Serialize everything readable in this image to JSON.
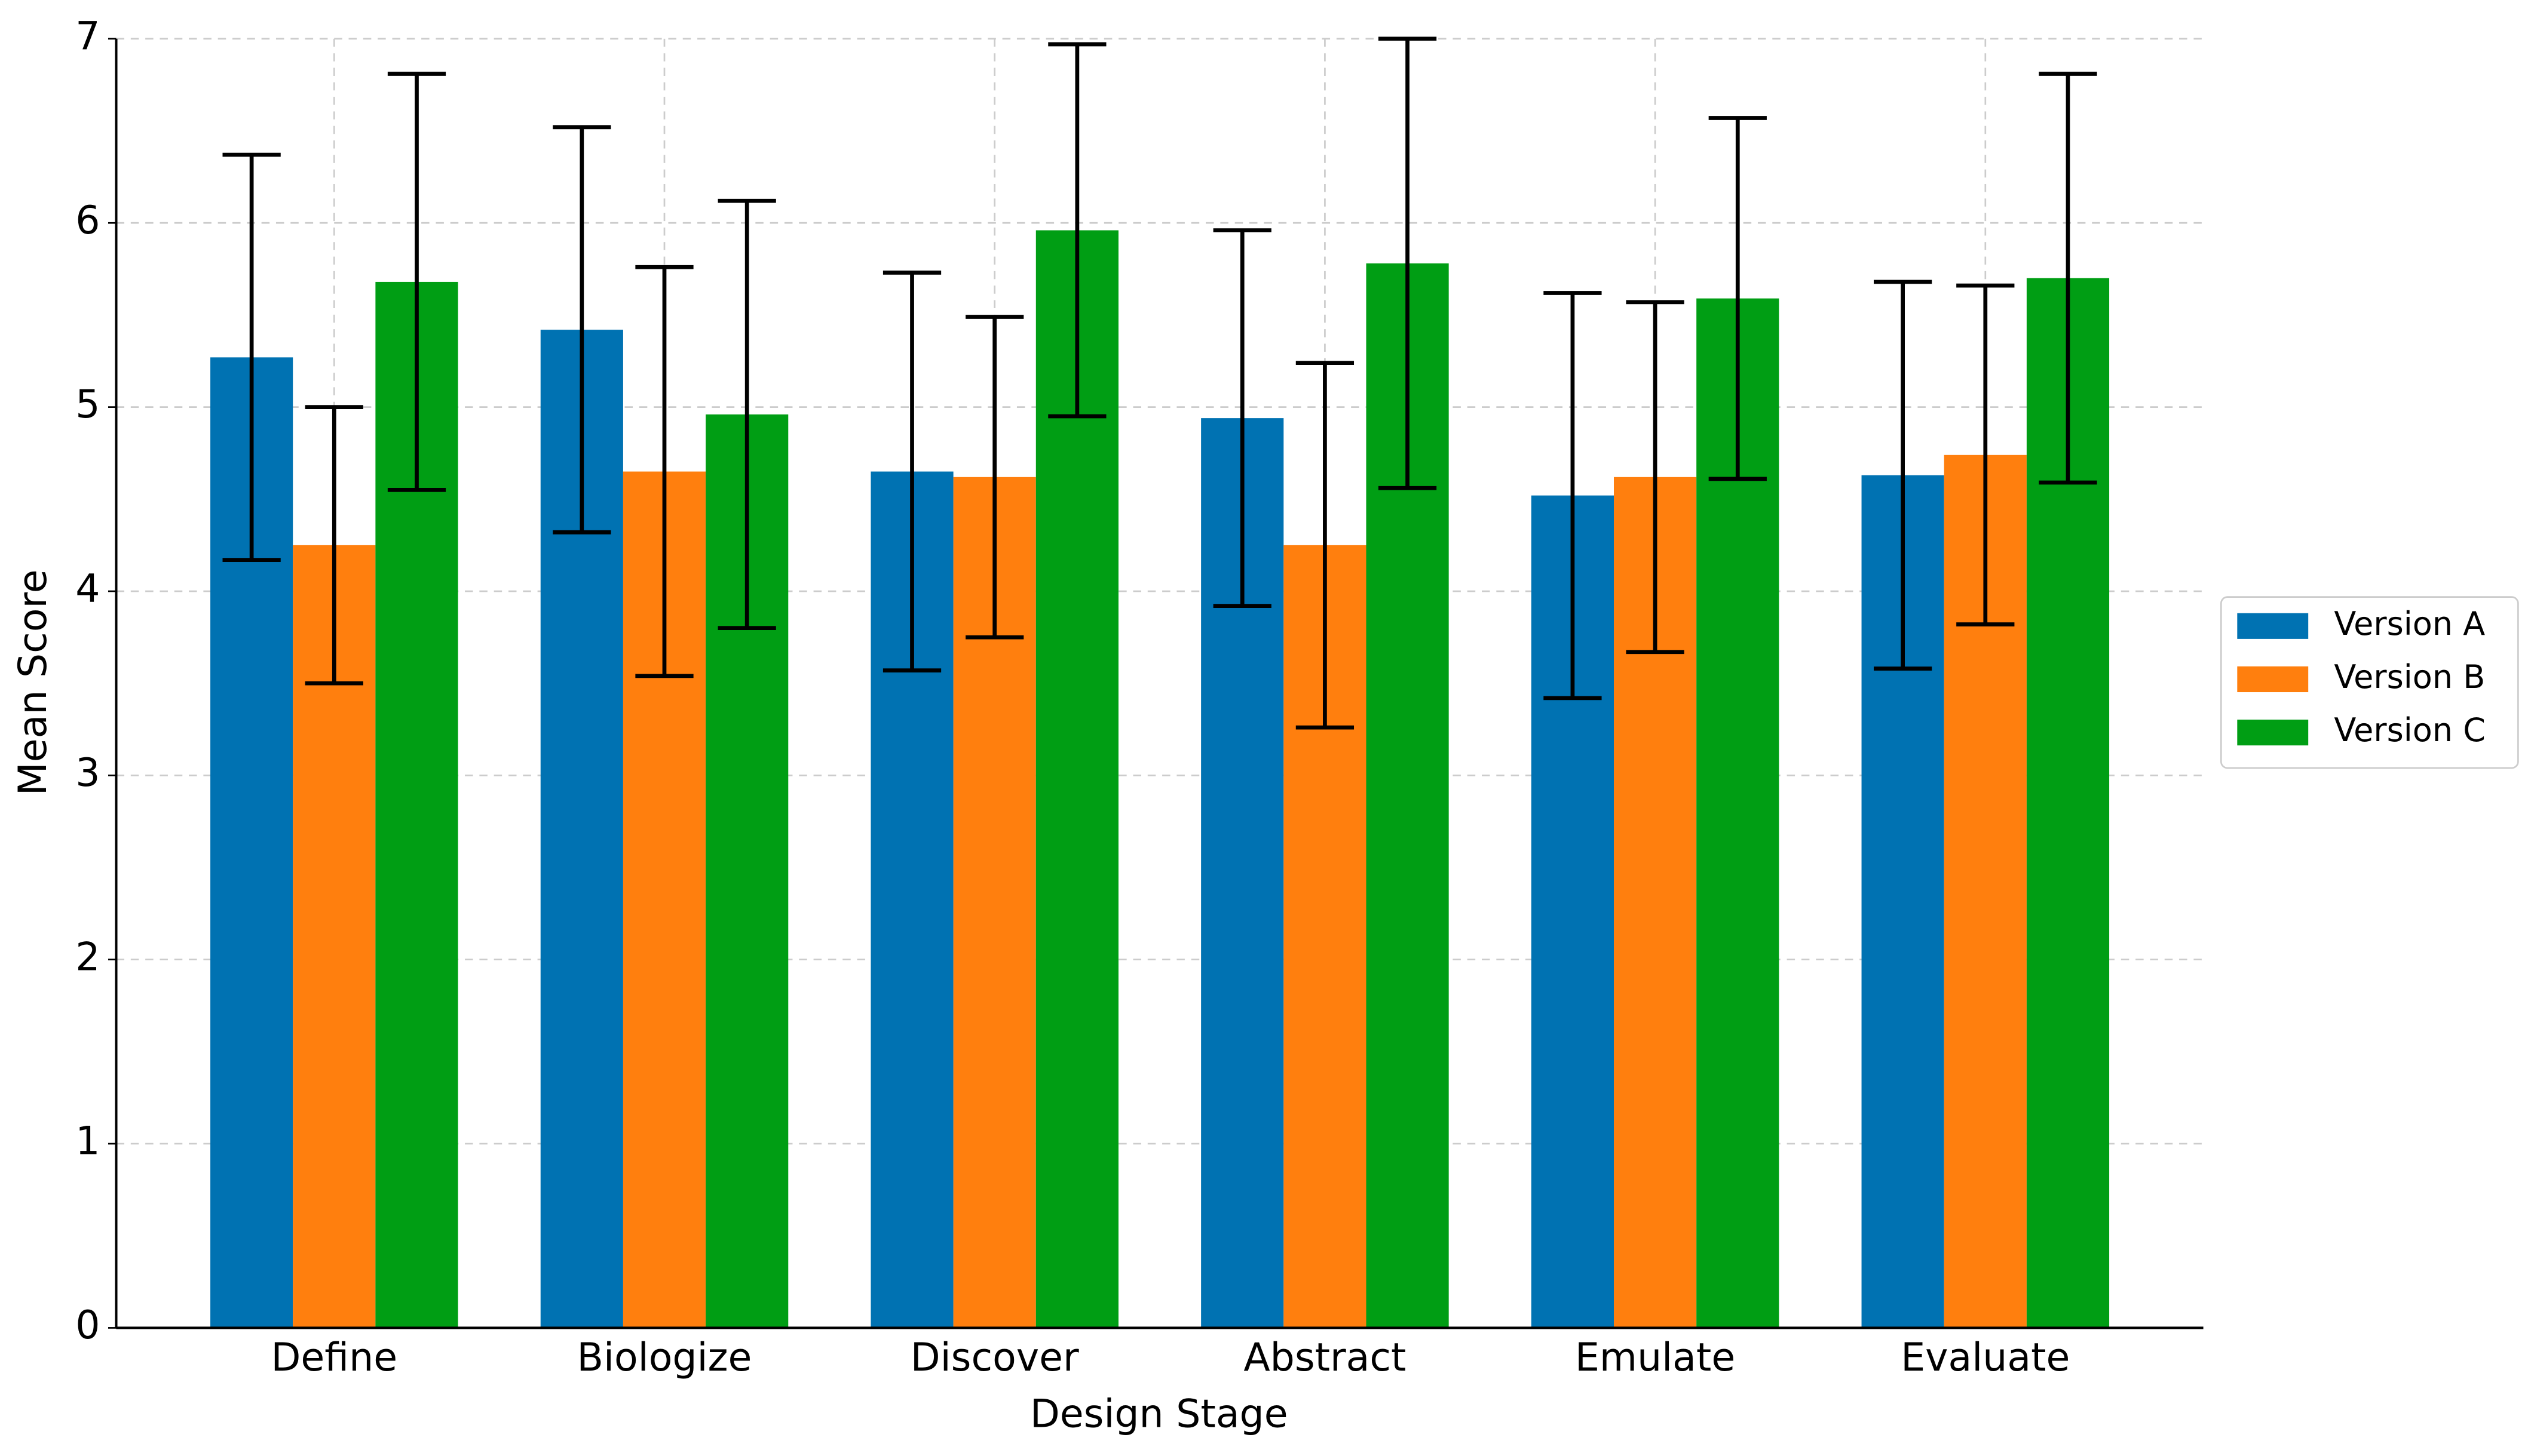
{
  "chart_data": {
    "type": "bar",
    "x_label": "Design Stage",
    "y_label": "Mean Score",
    "categories": [
      "Define",
      "Biologize",
      "Discover",
      "Abstract",
      "Emulate",
      "Evaluate"
    ],
    "series": [
      {
        "name": "Version A",
        "color": "#0072b2",
        "values": [
          5.27,
          5.42,
          4.65,
          4.94,
          4.52,
          4.63
        ],
        "errors": [
          1.1,
          1.1,
          1.08,
          1.02,
          1.1,
          1.05
        ]
      },
      {
        "name": "Version B",
        "color": "#ff7f0e",
        "values": [
          4.25,
          4.65,
          4.62,
          4.25,
          4.62,
          4.74
        ],
        "errors": [
          0.75,
          1.11,
          0.87,
          0.99,
          0.95,
          0.92
        ]
      },
      {
        "name": "Version C",
        "color": "#009e14",
        "values": [
          5.68,
          4.96,
          5.96,
          5.78,
          5.59,
          5.7
        ],
        "errors": [
          1.13,
          1.16,
          1.01,
          1.22,
          0.98,
          1.11
        ]
      }
    ],
    "ylim": [
      0,
      7
    ],
    "yticks": [
      0,
      1,
      2,
      3,
      4,
      5,
      6,
      7
    ],
    "grid": true,
    "legend": "outside right"
  }
}
